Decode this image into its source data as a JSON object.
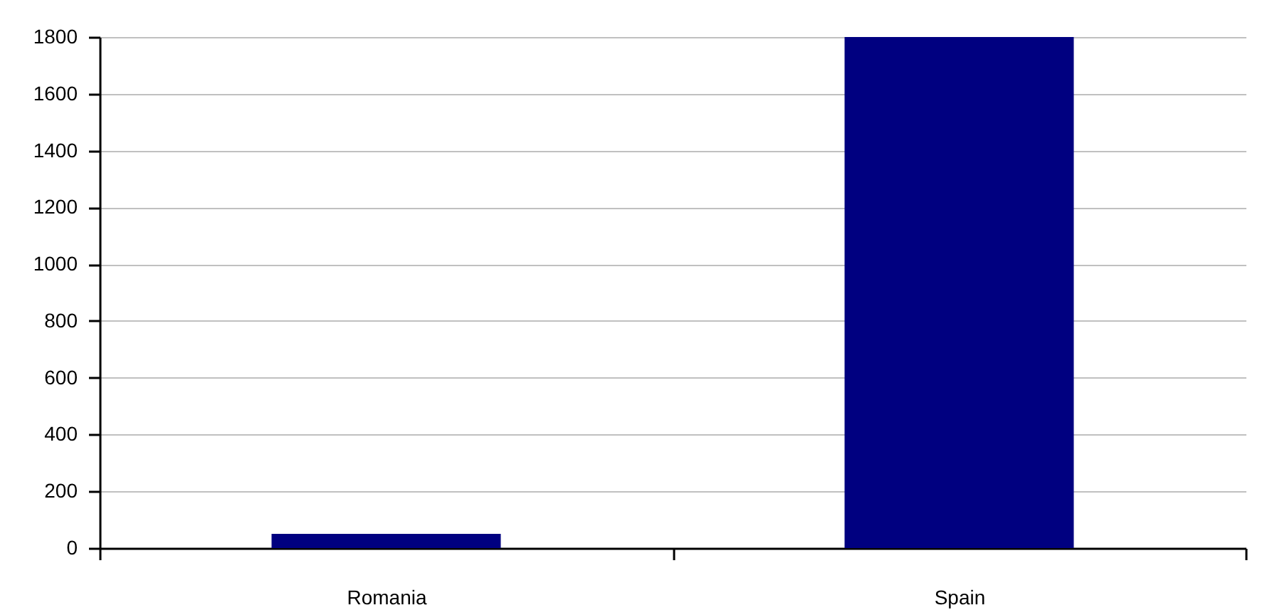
{
  "chart_data": {
    "type": "bar",
    "categories": [
      "Romania",
      "Spain"
    ],
    "values": [
      50,
      1800
    ],
    "color": "#000080",
    "ylim": [
      0,
      1800
    ],
    "yticks": [
      0,
      200,
      400,
      600,
      800,
      1000,
      1200,
      1400,
      1600,
      1800
    ],
    "grid": "y"
  }
}
